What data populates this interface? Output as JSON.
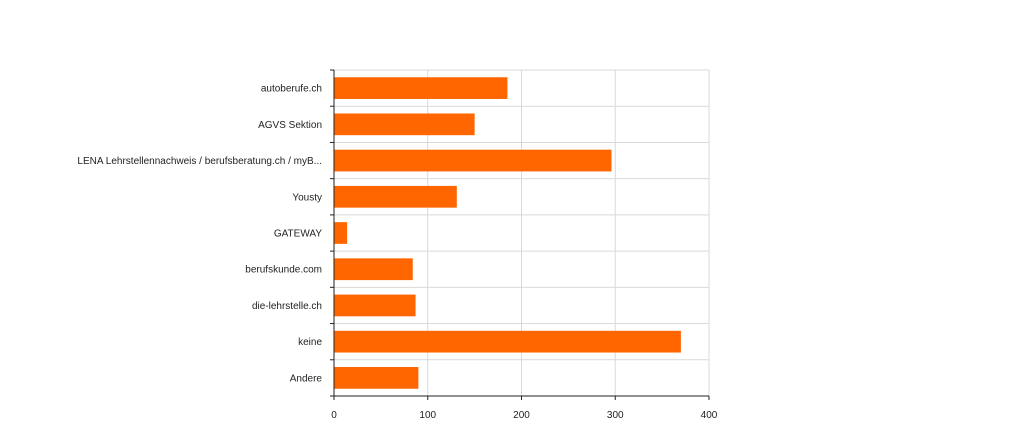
{
  "chart_data": {
    "type": "bar",
    "orientation": "horizontal",
    "categories": [
      "autoberufe.ch",
      "AGVS Sektion",
      "LENA Lehrstellennachweis / berufsberatung.ch / myB...",
      "Yousty",
      "GATEWAY",
      "berufskunde.com",
      "die-lehrstelle.ch",
      "keine",
      "Andere"
    ],
    "values": [
      185,
      150,
      296,
      131,
      14,
      84,
      87,
      370,
      90
    ],
    "xlim": [
      0,
      400
    ],
    "xticks": [
      "0",
      "100",
      "200",
      "300",
      "400"
    ],
    "grid": true,
    "bar_color": "#ff6600",
    "grid_color": "#d9d9d9",
    "axis_color": "#222222"
  }
}
